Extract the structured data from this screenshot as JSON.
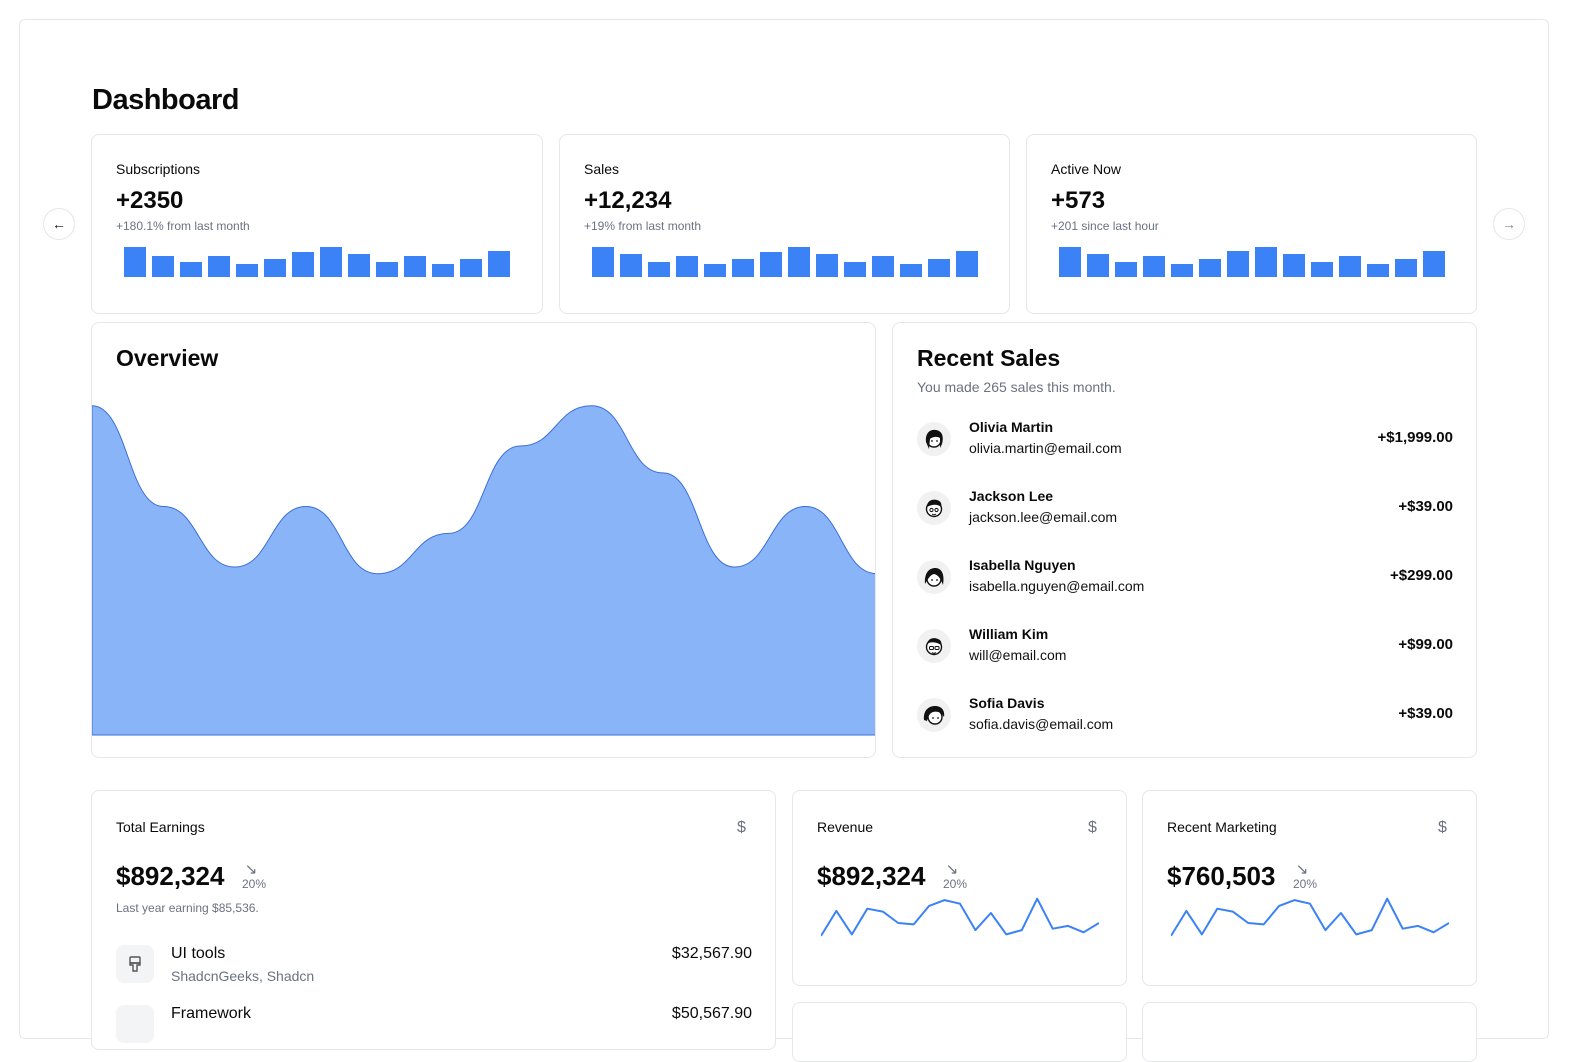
{
  "page": {
    "title": "Dashboard"
  },
  "stats": [
    {
      "label": "Subscriptions",
      "value": "+2350",
      "sub": "+180.1% from last month",
      "bars": [
        1.0,
        0.7,
        0.5,
        0.7,
        0.45,
        0.6,
        0.85,
        1.0,
        0.78,
        0.5,
        0.7,
        0.45,
        0.6,
        0.88
      ]
    },
    {
      "label": "Sales",
      "value": "+12,234",
      "sub": "+19% from last month",
      "bars": [
        1.0,
        0.78,
        0.5,
        0.7,
        0.45,
        0.6,
        0.85,
        1.0,
        0.78,
        0.5,
        0.7,
        0.45,
        0.6,
        0.88
      ]
    },
    {
      "label": "Active Now",
      "value": "+573",
      "sub": "+201 since last hour",
      "bars": [
        1.0,
        0.78,
        0.5,
        0.7,
        0.45,
        0.6,
        0.88,
        1.0,
        0.78,
        0.5,
        0.7,
        0.45,
        0.6,
        0.88
      ]
    }
  ],
  "overview": {
    "title": "Overview",
    "fill_color": "#8ab4f8",
    "stroke_color": "#3b6fd8",
    "chart_data": {
      "type": "area",
      "values": [
        98,
        68,
        50,
        68,
        48,
        60,
        86,
        98,
        78,
        50,
        68,
        48
      ]
    }
  },
  "recent_sales": {
    "title": "Recent Sales",
    "description": "You made 265 sales this month.",
    "items": [
      {
        "name": "Olivia Martin",
        "email": "olivia.martin@email.com",
        "amount": "+$1,999.00"
      },
      {
        "name": "Jackson Lee",
        "email": "jackson.lee@email.com",
        "amount": "+$39.00"
      },
      {
        "name": "Isabella Nguyen",
        "email": "isabella.nguyen@email.com",
        "amount": "+$299.00"
      },
      {
        "name": "William Kim",
        "email": "will@email.com",
        "amount": "+$99.00"
      },
      {
        "name": "Sofia Davis",
        "email": "sofia.davis@email.com",
        "amount": "+$39.00"
      }
    ]
  },
  "total_earnings": {
    "label": "Total Earnings",
    "currency_symbol": "$",
    "value": "$892,324",
    "change_arrow": "↘",
    "change": "20%",
    "note": "Last year earning $85,536.",
    "tools": [
      {
        "icon": "paintbrush-icon",
        "name": "UI tools",
        "sub": "ShadcnGeeks, Shadcn",
        "amount": "$32,567.90"
      },
      {
        "icon": "code-icon",
        "name": "Framework",
        "sub": "",
        "amount": "$50,567.90"
      }
    ]
  },
  "revenue": {
    "label": "Revenue",
    "currency_symbol": "$",
    "value": "$892,324",
    "change_arrow": "↘",
    "change": "20%",
    "chart_data": {
      "type": "line",
      "values": [
        10,
        45,
        12,
        48,
        44,
        28,
        26,
        52,
        60,
        55,
        18,
        42,
        12,
        18,
        62,
        20,
        24,
        15,
        28
      ]
    }
  },
  "recent_marketing": {
    "label": "Recent Marketing",
    "currency_symbol": "$",
    "value": "$760,503",
    "change_arrow": "↘",
    "change": "20%",
    "chart_data": {
      "type": "line",
      "values": [
        10,
        45,
        12,
        48,
        44,
        28,
        26,
        52,
        60,
        55,
        18,
        42,
        12,
        18,
        62,
        20,
        24,
        15,
        28
      ]
    }
  },
  "nav": {
    "prev_icon": "arrow-left-icon",
    "next_icon": "arrow-right-icon"
  },
  "chart_color": "#3b82f6"
}
